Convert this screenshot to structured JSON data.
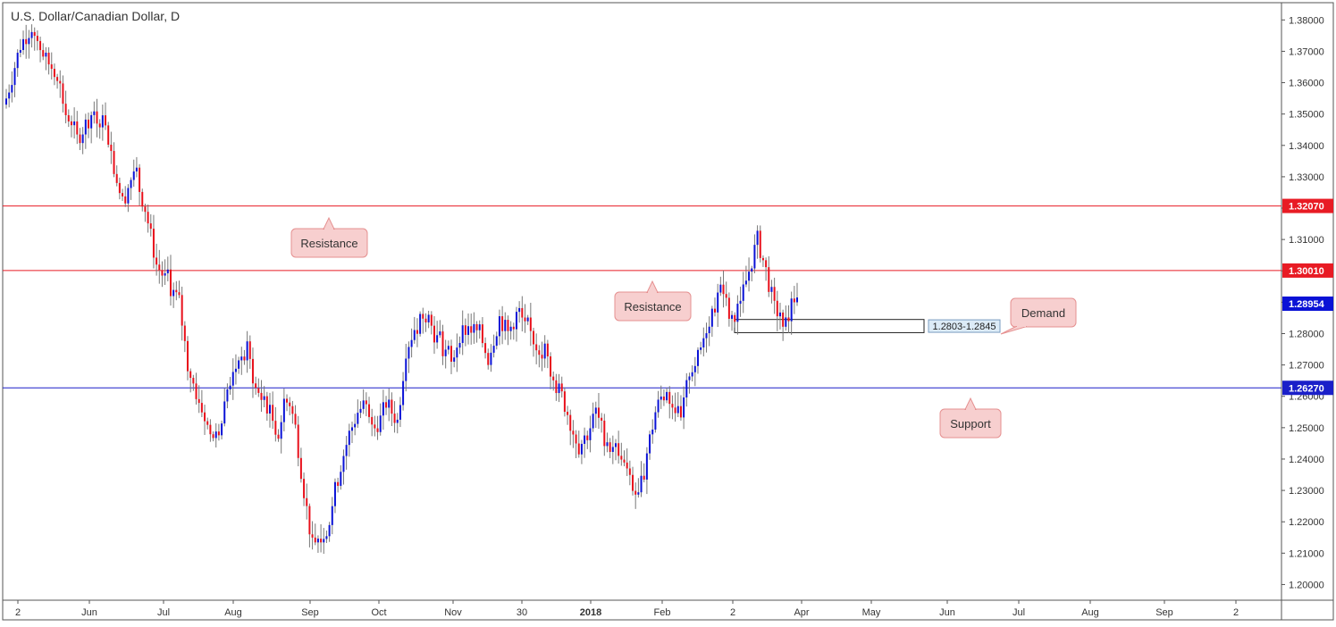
{
  "chart_data": {
    "type": "candlestick",
    "title": "U.S. Dollar/Canadian Dollar, D",
    "ylim": [
      1.195,
      1.3855
    ],
    "y_ticks": [
      "1.38000",
      "1.37000",
      "1.36000",
      "1.35000",
      "1.34000",
      "1.33000",
      "1.32000",
      "1.31000",
      "1.30000",
      "1.29000",
      "1.28000",
      "1.27000",
      "1.26000",
      "1.25000",
      "1.24000",
      "1.23000",
      "1.22000",
      "1.21000",
      "1.20000"
    ],
    "x_ticks": [
      "2",
      "Jun",
      "Jul",
      "Aug",
      "Sep",
      "Oct",
      "Nov",
      "30",
      "2018",
      "Feb",
      "2",
      "Apr",
      "May",
      "Jun",
      "Jul",
      "Aug",
      "Sep",
      "2"
    ],
    "x_tick_bold": [
      "2018"
    ],
    "grid": false,
    "colors": {
      "up": "#0a12d6",
      "down": "#e8101b",
      "resistance_line": "#e81b24",
      "support_line": "#1a1fc9",
      "callout_fill": "#f7cfcf",
      "callout_border": "#e59090"
    },
    "key_path": [
      [
        0,
        1.355
      ],
      [
        5,
        1.372
      ],
      [
        9,
        1.378
      ],
      [
        14,
        1.367
      ],
      [
        18,
        1.363
      ],
      [
        21,
        1.35
      ],
      [
        25,
        1.342
      ],
      [
        30,
        1.35
      ],
      [
        35,
        1.348
      ],
      [
        38,
        1.333
      ],
      [
        41,
        1.322
      ],
      [
        45,
        1.332
      ],
      [
        49,
        1.32
      ],
      [
        53,
        1.302
      ],
      [
        57,
        1.296
      ],
      [
        61,
        1.29
      ],
      [
        64,
        1.27
      ],
      [
        68,
        1.258
      ],
      [
        72,
        1.248
      ],
      [
        75,
        1.247
      ],
      [
        78,
        1.262
      ],
      [
        82,
        1.272
      ],
      [
        85,
        1.275
      ],
      [
        88,
        1.262
      ],
      [
        92,
        1.257
      ],
      [
        96,
        1.248
      ],
      [
        99,
        1.262
      ],
      [
        102,
        1.25
      ],
      [
        105,
        1.23
      ],
      [
        108,
        1.212
      ],
      [
        111,
        1.215
      ],
      [
        114,
        1.22
      ],
      [
        117,
        1.235
      ],
      [
        121,
        1.248
      ],
      [
        124,
        1.255
      ],
      [
        127,
        1.258
      ],
      [
        131,
        1.25
      ],
      [
        134,
        1.258
      ],
      [
        138,
        1.252
      ],
      [
        141,
        1.275
      ],
      [
        145,
        1.284
      ],
      [
        148,
        1.288
      ],
      [
        151,
        1.28
      ],
      [
        154,
        1.275
      ],
      [
        157,
        1.27
      ],
      [
        160,
        1.28
      ],
      [
        163,
        1.282
      ],
      [
        167,
        1.28
      ],
      [
        170,
        1.272
      ],
      [
        174,
        1.285
      ],
      [
        177,
        1.28
      ],
      [
        180,
        1.286
      ],
      [
        183,
        1.284
      ],
      [
        187,
        1.276
      ],
      [
        190,
        1.275
      ],
      [
        193,
        1.265
      ],
      [
        196,
        1.26
      ],
      [
        199,
        1.252
      ],
      [
        202,
        1.244
      ],
      [
        205,
        1.248
      ],
      [
        208,
        1.255
      ],
      [
        211,
        1.247
      ],
      [
        214,
        1.243
      ],
      [
        217,
        1.24
      ],
      [
        220,
        1.233
      ],
      [
        223,
        1.228
      ],
      [
        226,
        1.242
      ],
      [
        229,
        1.255
      ],
      [
        232,
        1.262
      ],
      [
        235,
        1.258
      ],
      [
        238,
        1.252
      ],
      [
        241,
        1.268
      ],
      [
        244,
        1.272
      ],
      [
        247,
        1.282
      ],
      [
        250,
        1.29
      ],
      [
        253,
        1.295
      ],
      [
        256,
        1.282
      ],
      [
        259,
        1.29
      ],
      [
        262,
        1.3
      ],
      [
        265,
        1.31
      ],
      [
        268,
        1.3
      ],
      [
        271,
        1.288
      ],
      [
        274,
        1.285
      ],
      [
        277,
        1.29
      ],
      [
        279,
        1.289
      ]
    ],
    "last_price": 1.28954
  },
  "levels": [
    {
      "price": 1.3207,
      "label": "1.32070",
      "kind": "resistance"
    },
    {
      "price": 1.3001,
      "label": "1.30010",
      "kind": "resistance"
    },
    {
      "price": 1.2627,
      "label": "1.26270",
      "kind": "support"
    }
  ],
  "price_tag": {
    "label": "1.28954"
  },
  "demand_zone": {
    "low": 1.2803,
    "high": 1.2845,
    "label": "1.2803-1.2845"
  },
  "callouts": [
    {
      "id": "resistance-upper",
      "text": "Resistance"
    },
    {
      "id": "resistance-lower",
      "text": "Resistance"
    },
    {
      "id": "demand",
      "text": "Demand"
    },
    {
      "id": "support",
      "text": "Support"
    }
  ]
}
